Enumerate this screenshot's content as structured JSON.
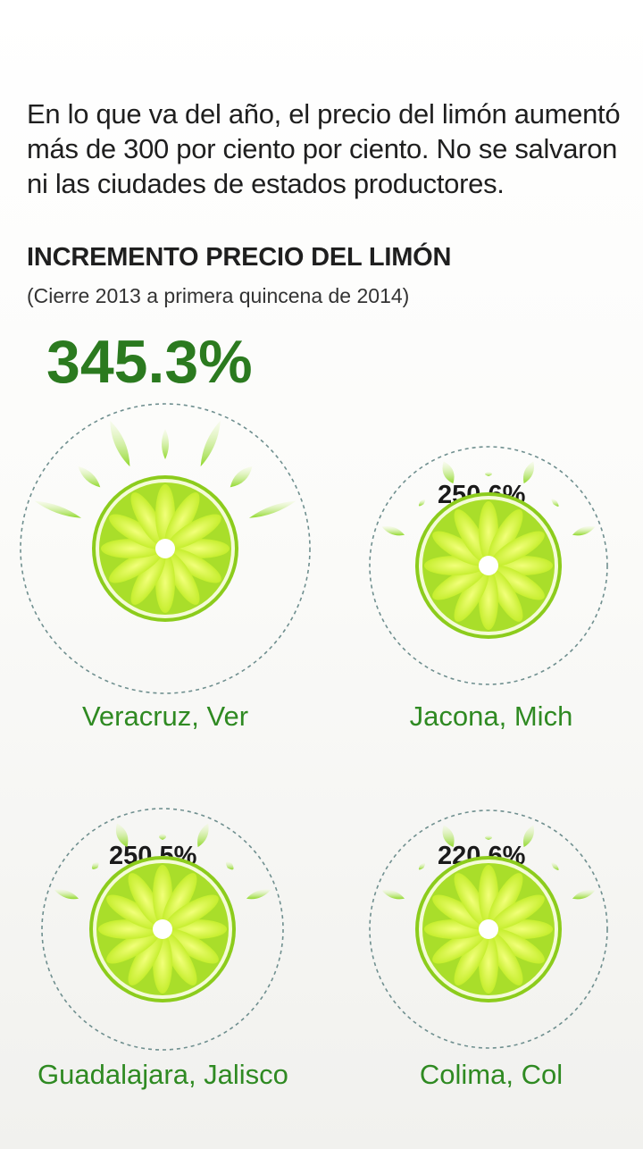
{
  "intro": "En lo que va del año, el precio del limón aumentó más de 300 por ciento por ciento. No se salvaron ni las ciudades de estados productores.",
  "title": "INCREMENTO PRECIO DEL LIMÓN",
  "subtitle": "(Cierre 2013 a primera quincena de 2014)",
  "colors": {
    "accent_dark_green": "#2b7a1f",
    "city_green": "#2f8a22",
    "lime": "#b9e63a"
  },
  "cities": [
    {
      "name": "Veracruz, Ver",
      "increase": "345.3%"
    },
    {
      "name": "Jacona, Mich",
      "increase": "250.6%"
    },
    {
      "name": "Guadalajara, Jalisco",
      "increase": "250.5%"
    },
    {
      "name": "Colima, Col",
      "increase": "220.6%"
    }
  ]
}
